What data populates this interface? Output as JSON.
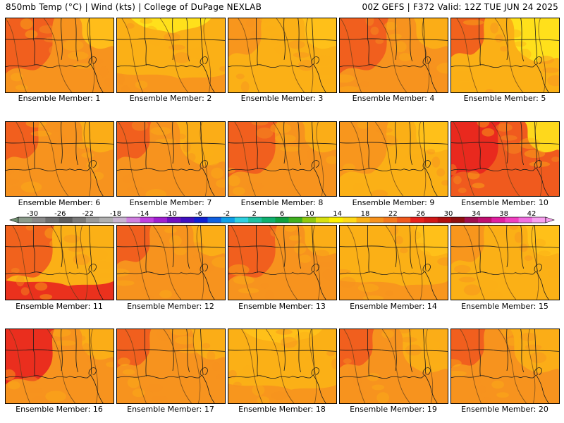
{
  "header": {
    "left": "850mb Temp (°C) | Wind (kts) | College of DuPage NEXLAB",
    "right": "00Z GEFS | F372 Valid: 12Z TUE JUN 24 2025"
  },
  "panels": [
    {
      "label": "Ensemble Member: 1",
      "base": "#f7931e",
      "blobs": [
        [
          "#f05a1e",
          "l",
          1
        ],
        [
          "#ffc21a",
          "r",
          0
        ]
      ]
    },
    {
      "label": "Ensemble Member: 2",
      "base": "#fbb016",
      "blobs": [
        [
          "#ffe51c",
          "t",
          1
        ],
        [
          "#f7931e",
          "b",
          0
        ]
      ]
    },
    {
      "label": "Ensemble Member: 3",
      "base": "#fbb016",
      "blobs": [
        [
          "#ffc21a",
          "r",
          0
        ],
        [
          "#f7931e",
          "l",
          0
        ]
      ]
    },
    {
      "label": "Ensemble Member: 4",
      "base": "#f7931e",
      "blobs": [
        [
          "#f05a1e",
          "l",
          1
        ],
        [
          "#fbb016",
          "r",
          0
        ]
      ]
    },
    {
      "label": "Ensemble Member: 5",
      "base": "#fbb016",
      "blobs": [
        [
          "#f05a1e",
          "l",
          0
        ],
        [
          "#ffe51c",
          "r",
          1
        ]
      ]
    },
    {
      "label": "Ensemble Member: 6",
      "base": "#f7931e",
      "blobs": [
        [
          "#fbb016",
          "r",
          0
        ],
        [
          "#f05a1e",
          "l",
          0
        ]
      ]
    },
    {
      "label": "Ensemble Member: 7",
      "base": "#f7931e",
      "blobs": [
        [
          "#fbb016",
          "r",
          1
        ],
        [
          "#f05a1e",
          "l",
          0
        ]
      ]
    },
    {
      "label": "Ensemble Member: 8",
      "base": "#f7931e",
      "blobs": [
        [
          "#f05a1e",
          "l",
          1
        ],
        [
          "#fbb016",
          "r",
          0
        ]
      ]
    },
    {
      "label": "Ensemble Member: 9",
      "base": "#fbb016",
      "blobs": [
        [
          "#f7931e",
          "l",
          1
        ],
        [
          "#ffc21a",
          "r",
          0
        ]
      ]
    },
    {
      "label": "Ensemble Member: 10",
      "base": "#f05a1e",
      "blobs": [
        [
          "#e8231e",
          "l",
          1
        ],
        [
          "#ffe51c",
          "r",
          0
        ]
      ]
    },
    {
      "label": "Ensemble Member: 11",
      "base": "#fbb016",
      "blobs": [
        [
          "#f05a1e",
          "l",
          1
        ],
        [
          "#e8231e",
          "b",
          0
        ]
      ]
    },
    {
      "label": "Ensemble Member: 12",
      "base": "#f7931e",
      "blobs": [
        [
          "#fbb016",
          "r",
          0
        ],
        [
          "#f05a1e",
          "l",
          0
        ]
      ]
    },
    {
      "label": "Ensemble Member: 13",
      "base": "#f7931e",
      "blobs": [
        [
          "#f05a1e",
          "l",
          1
        ],
        [
          "#fbb016",
          "r",
          0
        ]
      ]
    },
    {
      "label": "Ensemble Member: 14",
      "base": "#fbb016",
      "blobs": [
        [
          "#f7931e",
          "b",
          0
        ],
        [
          "#ffc21a",
          "r",
          0
        ]
      ]
    },
    {
      "label": "Ensemble Member: 15",
      "base": "#fbb016",
      "blobs": [
        [
          "#f7931e",
          "l",
          0
        ],
        [
          "#ffc21a",
          "r",
          0
        ]
      ]
    },
    {
      "label": "Ensemble Member: 16",
      "base": "#f7931e",
      "blobs": [
        [
          "#e8231e",
          "l",
          1
        ],
        [
          "#fbb016",
          "r",
          0
        ]
      ]
    },
    {
      "label": "Ensemble Member: 17",
      "base": "#f7931e",
      "blobs": [
        [
          "#fbb016",
          "r",
          0
        ],
        [
          "#f05a1e",
          "l",
          0
        ]
      ]
    },
    {
      "label": "Ensemble Member: 18",
      "base": "#fbb016",
      "blobs": [
        [
          "#ffc21a",
          "t",
          1
        ],
        [
          "#f7931e",
          "b",
          0
        ]
      ]
    },
    {
      "label": "Ensemble Member: 19",
      "base": "#f7931e",
      "blobs": [
        [
          "#fbb016",
          "r",
          1
        ],
        [
          "#f05a1e",
          "l",
          0
        ]
      ]
    },
    {
      "label": "Ensemble Member: 20",
      "base": "#f7931e",
      "blobs": [
        [
          "#f05a1e",
          "l",
          0
        ],
        [
          "#fbb016",
          "r",
          1
        ]
      ]
    }
  ],
  "colorbar": {
    "tick_labels": [
      "-30",
      "-26",
      "-22",
      "-18",
      "-14",
      "-10",
      "-6",
      "-2",
      "2",
      "6",
      "10",
      "14",
      "18",
      "22",
      "26",
      "30",
      "34",
      "38",
      "42"
    ],
    "colors": [
      "#8c9c8c",
      "#8a8a8a",
      "#6f6f6f",
      "#5e5e5e",
      "#7a7a7a",
      "#9a9a9a",
      "#b0b0b0",
      "#c8b4d0",
      "#d080e0",
      "#c040e0",
      "#a020d0",
      "#7010c0",
      "#4010c0",
      "#1020d0",
      "#1060e0",
      "#10a0e8",
      "#30d0e0",
      "#20c0a0",
      "#10b070",
      "#10a040",
      "#40b020",
      "#90c810",
      "#d8e010",
      "#fff000",
      "#ffd818",
      "#fbb016",
      "#f7931e",
      "#f57a1e",
      "#f05a1e",
      "#e8231e",
      "#d01818",
      "#b01010",
      "#901010",
      "#a01050",
      "#c01070",
      "#e020a0",
      "#f040c0",
      "#f070e0",
      "#f8a0f0"
    ]
  }
}
